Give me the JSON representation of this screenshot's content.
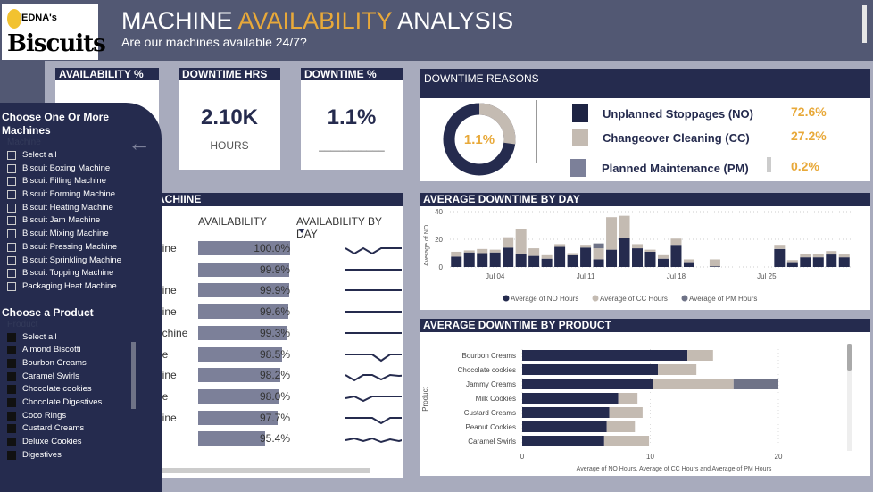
{
  "header": {
    "logo_top": "EDNA's",
    "logo_bottom": "Biscuits",
    "title_a": "MACHINE ",
    "title_b": "AVAILABILITY",
    "title_c": " ANALYSIS",
    "subtitle": "Are our machines available 24/7?"
  },
  "cards": {
    "availability": {
      "label": "AVAILABILITY %"
    },
    "downtime_hrs": {
      "label": "DOWNTIME HRS",
      "value": "2.10K",
      "unit": "HOURS"
    },
    "downtime_pct": {
      "label": "DOWNTIME %",
      "value": "1.1%",
      "unit": "___________"
    }
  },
  "reasons": {
    "title": "DOWNTIME REASONS",
    "center": "1.1%",
    "items": [
      {
        "label": "Unplanned Stoppages (NO)",
        "pct": "72.6%",
        "color": "#1e2444"
      },
      {
        "label": "Changeover Cleaning (CC)",
        "pct": "27.2%",
        "color": "#c4bbb2"
      },
      {
        "label": "Planned Maintenance (PM)",
        "pct": "0.2%",
        "color": "#7c8099"
      }
    ]
  },
  "machines": {
    "title": "ACHIINE",
    "col_avail": "AVAILABILITY",
    "col_day": "AVAILABILITY BY DAY",
    "rows": [
      {
        "name": "hine",
        "value": "100.0%",
        "pct": 100.0
      },
      {
        "name": "",
        "value": "99.9%",
        "pct": 99.9
      },
      {
        "name": "hine",
        "value": "99.9%",
        "pct": 99.9
      },
      {
        "name": "hine",
        "value": "99.6%",
        "pct": 99.6
      },
      {
        "name": "achine",
        "value": "99.3%",
        "pct": 99.3
      },
      {
        "name": "ne",
        "value": "98.5%",
        "pct": 98.5
      },
      {
        "name": "hine",
        "value": "98.2%",
        "pct": 98.2
      },
      {
        "name": "ne",
        "value": "98.0%",
        "pct": 98.0
      },
      {
        "name": "hine",
        "value": "97.7%",
        "pct": 97.7
      },
      {
        "name": "e",
        "value": "95.4%",
        "pct": 95.4
      }
    ],
    "scroll_right": ">"
  },
  "slicer": {
    "machines_title": "Choose One Or More Machines",
    "machines_field": "Machine",
    "machines": [
      "Select all",
      "Biscuit Boxing Machine",
      "Biscuit Filling Machine",
      "Biscuit Forming Machine",
      "Biscuit Heating Machine",
      "Biscuit Jam Machine",
      "Biscuit Mixing Machine",
      "Biscuit Pressing Machine",
      "Biscuit Sprinkling Machine",
      "Biscuit Topping Machine",
      "Packaging Heat Machine"
    ],
    "product_title": "Choose a Product",
    "product_field": "Product",
    "products": [
      "Select all",
      "Almond Biscotti",
      "Bourbon Creams",
      "Caramel Swirls",
      "Chocolate cookies",
      "Chocolate Digestives",
      "Coco Rings",
      "Custard Creams",
      "Deluxe Cookies",
      "Digestives"
    ]
  },
  "chart_data": [
    {
      "type": "bar",
      "title": "AVERAGE DOWNTIME BY DAY",
      "ylabel": "Average of NO ...",
      "ylim": [
        0,
        40
      ],
      "yticks": [
        "0",
        "20",
        "40"
      ],
      "xticks": [
        "Jul 04",
        "Jul 11",
        "Jul 18",
        "Jul 25"
      ],
      "x": [
        1,
        2,
        3,
        4,
        5,
        6,
        7,
        8,
        9,
        10,
        11,
        12,
        13,
        14,
        15,
        16,
        17,
        18,
        19,
        21,
        26,
        27,
        28,
        29,
        30,
        31
      ],
      "series": [
        {
          "name": "Average of NO Hours",
          "color": "#252b4e",
          "values": [
            7.5,
            10.5,
            10,
            10.5,
            14,
            9.5,
            8,
            6,
            14.5,
            8.5,
            14,
            5.5,
            12.5,
            21,
            13.5,
            11,
            6,
            16,
            3.5,
            0.5,
            13,
            3.5,
            7,
            7,
            9,
            7
          ]
        },
        {
          "name": "Average of CC Hours",
          "color": "#c4bbb2",
          "values": [
            3.5,
            1.5,
            3,
            2,
            7.5,
            18,
            5.5,
            2.5,
            2,
            1.5,
            2,
            8,
            23.5,
            16,
            3,
            1.5,
            2.5,
            4.5,
            2,
            5,
            3,
            1.5,
            2.5,
            2.5,
            2.5,
            2
          ]
        },
        {
          "name": "Average of PM Hours",
          "color": "#6f7387",
          "values": [
            0,
            0,
            0,
            0,
            0,
            0,
            0,
            0,
            0,
            0,
            0,
            3.5,
            0,
            0,
            0,
            0,
            0,
            0,
            0,
            0,
            0,
            0,
            0,
            0,
            0,
            0
          ]
        }
      ]
    },
    {
      "type": "bar",
      "title": "AVERAGE DOWNTIME BY PRODUCT",
      "ylabel": "Product",
      "xlabel": "Average of NO Hours, Average of CC Hours and Average of PM Hours",
      "xlim": [
        0,
        22
      ],
      "xticks": [
        "0",
        "10",
        "20"
      ],
      "categories": [
        "Bourbon Creams",
        "Chocolate cookies",
        "Jammy Creams",
        "Milk Cookies",
        "Custard Creams",
        "Peanut Cookies",
        "Caramel Swirls"
      ],
      "series": [
        {
          "name": "Average of NO Hours",
          "color": "#252b4e",
          "values": [
            12.9,
            10.6,
            10.2,
            7.5,
            6.8,
            6.6,
            6.4
          ]
        },
        {
          "name": "Average of CC Hours",
          "color": "#c4bbb2",
          "values": [
            2.0,
            3.0,
            6.3,
            1.5,
            2.6,
            2.2,
            3.5
          ]
        },
        {
          "name": "Average of PM Hours",
          "color": "#6f7387",
          "values": [
            0,
            0,
            3.5,
            0,
            0,
            0,
            0
          ]
        }
      ]
    }
  ]
}
